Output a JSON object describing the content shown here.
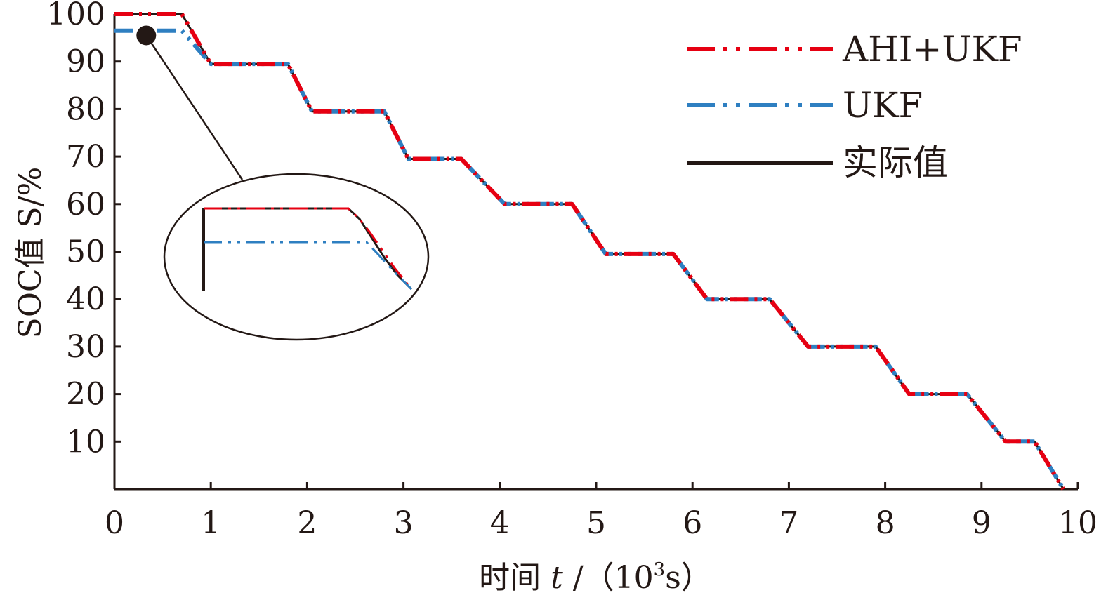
{
  "chart_data": {
    "type": "line",
    "xlabel_prefix": "时间 ",
    "xlabel_var": "t",
    "xlabel_unit_open": " /（10",
    "xlabel_unit_sup": "3",
    "xlabel_unit_close": "s）",
    "ylabel": "SOC值 S/%",
    "xlim": [
      0,
      10
    ],
    "ylim": [
      0,
      100
    ],
    "x_ticks": [
      "0",
      "1",
      "2",
      "3",
      "4",
      "5",
      "6",
      "7",
      "8",
      "9",
      "10"
    ],
    "y_ticks": [
      "10",
      "20",
      "30",
      "40",
      "50",
      "60",
      "70",
      "80",
      "90",
      "100"
    ],
    "grid": false,
    "legend_position": "top-right",
    "series": [
      {
        "name": "AHI+UKF",
        "color": "#e60012",
        "style": "dash-dot-dot",
        "x": [
          0,
          0.7,
          1.0,
          1.8,
          2.05,
          2.8,
          3.05,
          3.6,
          4.05,
          4.75,
          5.1,
          5.8,
          6.15,
          6.8,
          7.2,
          7.9,
          8.25,
          8.85,
          9.25,
          9.55,
          9.85
        ],
        "y": [
          100,
          100,
          89.5,
          89.5,
          79.5,
          79.5,
          69.5,
          69.5,
          60,
          60,
          49.5,
          49.5,
          40,
          40,
          30,
          30,
          20,
          20,
          10,
          10,
          0
        ]
      },
      {
        "name": "UKF",
        "color": "#2e7fc1",
        "style": "dash-dot-dot",
        "x": [
          0,
          0.7,
          1.0,
          1.8,
          2.05,
          2.8,
          3.05,
          3.6,
          4.05,
          4.75,
          5.1,
          5.8,
          6.15,
          6.8,
          7.2,
          7.9,
          8.25,
          8.85,
          9.25,
          9.55,
          9.85
        ],
        "y": [
          96.5,
          96.5,
          89.5,
          89.5,
          79.5,
          79.5,
          69.5,
          69.5,
          60,
          60,
          49.5,
          49.5,
          40,
          40,
          30,
          30,
          20,
          20,
          10,
          10,
          0
        ]
      },
      {
        "name": "实际值",
        "color": "#231815",
        "style": "solid",
        "x": [
          0,
          0.7,
          1.0,
          1.8,
          2.05,
          2.8,
          3.05,
          3.6,
          4.05,
          4.75,
          5.1,
          5.8,
          6.15,
          6.8,
          7.2,
          7.9,
          8.25,
          8.85,
          9.25,
          9.55,
          9.85
        ],
        "y": [
          100,
          100,
          89.5,
          89.5,
          79.5,
          79.5,
          69.5,
          69.5,
          60,
          60,
          49.5,
          49.5,
          40,
          40,
          30,
          30,
          20,
          20,
          10,
          10,
          0
        ]
      }
    ],
    "annotation": {
      "type": "zoom-inset",
      "anchor": {
        "x": 0.33,
        "y": 95.5
      }
    }
  }
}
